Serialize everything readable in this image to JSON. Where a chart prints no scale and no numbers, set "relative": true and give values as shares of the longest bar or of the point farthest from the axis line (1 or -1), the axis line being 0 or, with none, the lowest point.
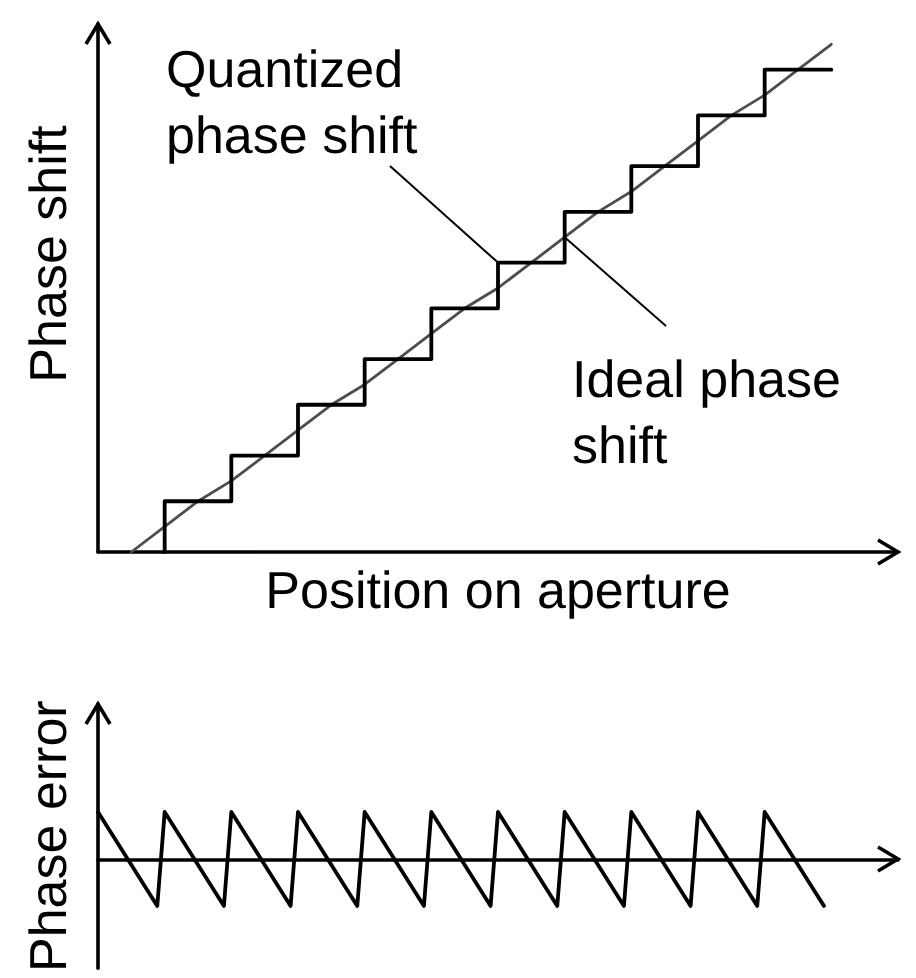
{
  "chart_data": [
    {
      "type": "line",
      "relative": true,
      "xlabel": "Position on aperture",
      "ylabel": "Phase shift",
      "marker": "none",
      "tick_labels": false,
      "categories": [
        null,
        null,
        null,
        null,
        null,
        null,
        null,
        null,
        null,
        null,
        null,
        null,
        null,
        null,
        null,
        null,
        null,
        null,
        null,
        null,
        null,
        null,
        null,
        null,
        null
      ],
      "series": [
        {
          "color": "#4d4d4d",
          "values": [
            null,
            0,
            0.05,
            0.1,
            0.14,
            0.19,
            0.24,
            0.29,
            0.33,
            0.38,
            0.43,
            0.48,
            0.52,
            0.57,
            0.62,
            0.67,
            0.71,
            0.76,
            0.81,
            0.86,
            0.9,
            0.95,
            1,
            null,
            null
          ]
        },
        {
          "type": "step",
          "color": "#000000",
          "values": [
            null,
            null,
            0,
            0.1,
            0.1,
            0.19,
            0.19,
            0.29,
            0.29,
            0.38,
            0.38,
            0.48,
            0.48,
            0.57,
            0.57,
            0.67,
            0.67,
            0.76,
            0.76,
            0.86,
            0.86,
            0.95,
            0.95,
            null,
            null
          ]
        }
      ],
      "annotations": [
        "Quantized phase shift",
        "Ideal phase shift"
      ]
    },
    {
      "type": "line",
      "relative": true,
      "ylabel": "Phase error",
      "marker": "none",
      "tick_labels": false,
      "categories": [
        null,
        null,
        null,
        null,
        null,
        null,
        null,
        null,
        null,
        null,
        null,
        null,
        null,
        null,
        null,
        null,
        null,
        null,
        null,
        null,
        null,
        null,
        null,
        null,
        null,
        null,
        null,
        null,
        null,
        null,
        null,
        null,
        null,
        null,
        null,
        null,
        null,
        null,
        null,
        null,
        null,
        null,
        null,
        null,
        null,
        null,
        null,
        null,
        null,
        null,
        null,
        null,
        null,
        null,
        null,
        null,
        null,
        null,
        null,
        null,
        null,
        null,
        null,
        null,
        null,
        null,
        null,
        null,
        null,
        null,
        null,
        null,
        null,
        null,
        null,
        null,
        null,
        null,
        null,
        null,
        null,
        null,
        null,
        null,
        null,
        null,
        null,
        null,
        null,
        null,
        null,
        null,
        null,
        null,
        null,
        null,
        null,
        null,
        null,
        null,
        null,
        null,
        null,
        null,
        null,
        null,
        null,
        null,
        null
      ],
      "series": [
        {
          "color": "#000000",
          "values": [
            1,
            0.75,
            0.5,
            0.25,
            0,
            -0.25,
            -0.5,
            -0.75,
            -1,
            1,
            0.75,
            0.5,
            0.25,
            0,
            -0.25,
            -0.5,
            -0.75,
            -1,
            1,
            0.75,
            0.5,
            0.25,
            0,
            -0.25,
            -0.5,
            -0.75,
            -1,
            1,
            0.75,
            0.5,
            0.25,
            0,
            -0.25,
            -0.5,
            -0.75,
            -1,
            1,
            0.75,
            0.5,
            0.25,
            0,
            -0.25,
            -0.5,
            -0.75,
            -1,
            1,
            0.75,
            0.5,
            0.25,
            0,
            -0.25,
            -0.5,
            -0.75,
            -1,
            1,
            0.75,
            0.5,
            0.25,
            0,
            -0.25,
            -0.5,
            -0.75,
            -1,
            1,
            0.75,
            0.5,
            0.25,
            0,
            -0.25,
            -0.5,
            -0.75,
            -1,
            1,
            0.75,
            0.5,
            0.25,
            0,
            -0.25,
            -0.5,
            -0.75,
            -1,
            1,
            0.75,
            0.5,
            0.25,
            0,
            -0.25,
            -0.5,
            -0.75,
            -1,
            1,
            0.75,
            0.5,
            0.25,
            0,
            -0.25,
            -0.5,
            -0.75,
            -1,
            null,
            null,
            null,
            null,
            null,
            null,
            null,
            null,
            null,
            null
          ]
        }
      ]
    }
  ]
}
